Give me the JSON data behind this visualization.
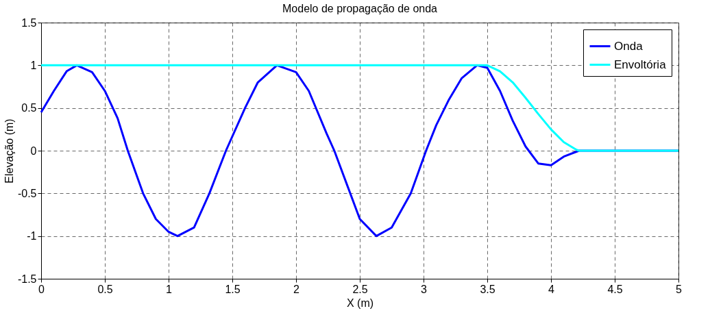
{
  "chart_data": {
    "type": "line",
    "title": "Modelo de propagação de onda",
    "xlabel": "X (m)",
    "ylabel": "Elevação (m)",
    "xlim": [
      0,
      5
    ],
    "xticks": [
      0,
      0.5,
      1,
      1.5,
      2,
      2.5,
      3,
      3.5,
      4,
      4.5,
      5
    ],
    "ylim": [
      -1.5,
      1.5
    ],
    "yticks": [
      -1.5,
      -1,
      -0.5,
      0,
      0.5,
      1,
      1.5
    ],
    "grid": true,
    "legend": "top right",
    "line_style": "solid",
    "marker": "none",
    "series": [
      {
        "name": "Onda",
        "color": "#0000ff",
        "x": [
          0,
          0.1,
          0.2,
          0.28,
          0.4,
          0.5,
          0.6,
          0.68,
          0.8,
          0.9,
          1.0,
          1.07,
          1.2,
          1.32,
          1.45,
          1.6,
          1.7,
          1.85,
          2.0,
          2.1,
          2.24,
          2.3,
          2.4,
          2.5,
          2.63,
          2.75,
          2.9,
          3.02,
          3.1,
          3.2,
          3.3,
          3.42,
          3.5,
          3.6,
          3.7,
          3.8,
          3.9,
          4.0,
          4.1,
          4.22,
          5
        ],
        "values": [
          0.45,
          0.7,
          0.93,
          1,
          0.92,
          0.7,
          0.38,
          0,
          -0.5,
          -0.8,
          -0.95,
          -1,
          -0.9,
          -0.5,
          0,
          0.5,
          0.8,
          1,
          0.92,
          0.7,
          0.2,
          0,
          -0.4,
          -0.8,
          -1,
          -0.9,
          -0.5,
          0,
          0.3,
          0.6,
          0.85,
          1,
          0.97,
          0.7,
          0.35,
          0.05,
          -0.15,
          -0.17,
          -0.07,
          0,
          0
        ]
      },
      {
        "name": "Envoltória",
        "color": "#00ffff",
        "x": [
          0,
          3.5,
          3.6,
          3.7,
          3.8,
          3.9,
          4.0,
          4.1,
          4.2,
          4.22,
          5
        ],
        "values": [
          1,
          1,
          0.93,
          0.8,
          0.62,
          0.43,
          0.25,
          0.1,
          0.01,
          0,
          0
        ]
      }
    ]
  }
}
